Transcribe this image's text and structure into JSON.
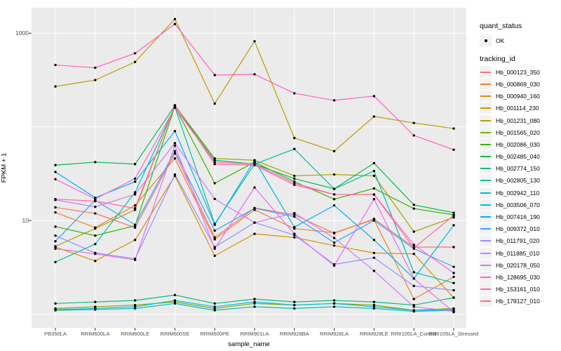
{
  "chart_data": {
    "type": "line",
    "xlabel": "sample_name",
    "ylabel": "FPKM + 1",
    "y_scale": "log10",
    "y_axis": {
      "tick_labels": [
        "1000",
        "10"
      ],
      "tick_values": [
        1000,
        10
      ],
      "gridline_values": [
        1,
        10,
        100,
        1000
      ]
    },
    "categories": [
      "PB350LA",
      "RRIM600LA",
      "RRIM600LE",
      "RRIM600SE",
      "RRIM600PE",
      "RRIM901LA",
      "RRIM928BA",
      "RRIM928LA",
      "RRIM928LE",
      "RRII105LA_Control",
      "RRII105LA_Stressed"
    ],
    "legend": {
      "quant_status_title": "quant_status",
      "quant_status_items": [
        {
          "label": "OK",
          "marker": "point"
        }
      ],
      "tracking_title": "tracking_id"
    },
    "panel_bg": "#EBEBEB",
    "grid_color": "#FFFFFF",
    "point_color": "#000000",
    "series": [
      {
        "name": "Hb_000123_350",
        "color": "#F8766D",
        "values": [
          13.8,
          11.9,
          8.4,
          52,
          6.6,
          13.6,
          11.5,
          7.3,
          10.4,
          5.2,
          5.2
        ]
      },
      {
        "name": "Hb_000869_030",
        "color": "#EA8331",
        "values": [
          12.2,
          8.4,
          14.5,
          46,
          6.3,
          13.0,
          8.2,
          7.4,
          10.2,
          1.45,
          2.5
        ]
      },
      {
        "name": "Hb_000940_160",
        "color": "#D89000",
        "values": [
          5.2,
          3.7,
          6.2,
          30,
          4.2,
          7.2,
          6.6,
          5.4,
          4.5,
          4.4,
          1.5
        ]
      },
      {
        "name": "Hb_001114_230",
        "color": "#C09B00",
        "values": [
          270,
          316,
          493,
          1416,
          177,
          820,
          76,
          55,
          129,
          110,
          96
        ]
      },
      {
        "name": "Hb_001231_080",
        "color": "#A3A500",
        "values": [
          5.3,
          8.2,
          13.0,
          170,
          46,
          44,
          30,
          31,
          30,
          7.6,
          10.8
        ]
      },
      {
        "name": "Hb_001565_020",
        "color": "#7CAE00",
        "values": [
          1.15,
          1.2,
          1.25,
          1.35,
          1.15,
          1.3,
          1.25,
          1.3,
          1.25,
          1.1,
          1.15
        ]
      },
      {
        "name": "Hb_002086_030",
        "color": "#39B600",
        "values": [
          8.6,
          6.9,
          8.8,
          165,
          25,
          42,
          26,
          16.9,
          22,
          13.4,
          11.5
        ]
      },
      {
        "name": "Hb_002485_040",
        "color": "#00BB4E",
        "values": [
          39,
          42,
          40,
          168,
          44,
          40,
          28,
          21.8,
          41,
          14.7,
          12.1
        ]
      },
      {
        "name": "Hb_002774_150",
        "color": "#00BF7D",
        "values": [
          1.3,
          1.35,
          1.4,
          1.6,
          1.3,
          1.45,
          1.35,
          1.4,
          1.35,
          1.25,
          1.5
        ]
      },
      {
        "name": "Hb_002805_130",
        "color": "#00C1A3",
        "values": [
          3.6,
          5.6,
          20,
          163,
          9.2,
          40,
          58,
          21.7,
          33.8,
          2.8,
          2.15
        ]
      },
      {
        "name": "Hb_002942_110",
        "color": "#00BFC4",
        "values": [
          1.1,
          1.12,
          1.15,
          1.3,
          1.1,
          1.2,
          1.15,
          1.2,
          1.15,
          1.07,
          1.1
        ]
      },
      {
        "name": "Hb_003506_070",
        "color": "#00BAE0",
        "values": [
          1.12,
          1.15,
          1.2,
          1.4,
          1.2,
          1.35,
          1.25,
          1.3,
          1.2,
          1.1,
          1.12
        ]
      },
      {
        "name": "Hb_007416_190",
        "color": "#00B0F6",
        "values": [
          33,
          17.5,
          26,
          90,
          9.0,
          44,
          8.5,
          14.5,
          6.2,
          2.4,
          8.9
        ]
      },
      {
        "name": "Hb_009372_010",
        "color": "#35A2FF",
        "values": [
          6.0,
          16.5,
          9.0,
          55,
          7.8,
          13.5,
          11.0,
          5.8,
          10.0,
          5.0,
          3.2
        ]
      },
      {
        "name": "Hb_011791_020",
        "color": "#9590FF",
        "values": [
          6.9,
          4.5,
          3.9,
          31,
          5.2,
          9.5,
          7.0,
          3.4,
          4.0,
          2.0,
          1.8
        ]
      },
      {
        "name": "Hb_011885_010",
        "color": "#C77CFF",
        "values": [
          16.6,
          14.0,
          19.0,
          67,
          17.0,
          9.5,
          12.0,
          6.5,
          2.9,
          1.2,
          1.07
        ]
      },
      {
        "name": "Hb_020178_050",
        "color": "#E76BF3",
        "values": [
          5.0,
          4.4,
          3.8,
          63,
          5.0,
          22.5,
          7.2,
          3.3,
          16.9,
          2.4,
          1.05
        ]
      },
      {
        "name": "Hb_128695_030",
        "color": "#FA62DB",
        "values": [
          27.6,
          17.0,
          28,
          160,
          42,
          40,
          25,
          19,
          19,
          5.5,
          2.75
        ]
      },
      {
        "name": "Hb_153161_010",
        "color": "#FF62BC",
        "values": [
          458,
          428,
          610,
          1253,
          357,
          364,
          228,
          192,
          213,
          81,
          57
        ]
      },
      {
        "name": "Hb_178127_010",
        "color": "#FF6A98",
        "values": [
          16.9,
          16.1,
          13.5,
          170,
          40,
          39,
          24,
          19,
          18.9,
          5.1,
          11.3
        ]
      }
    ]
  }
}
